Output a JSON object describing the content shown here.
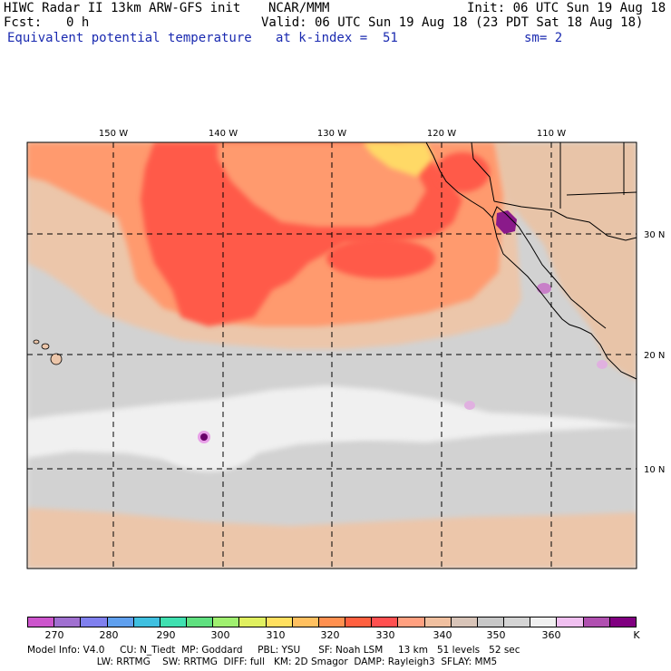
{
  "header": {
    "model_title": "HIWC Radar II 13km ARW-GFS init",
    "org": "NCAR/MMM",
    "init": "Init: 06 UTC Sun 19 Aug 18",
    "fcst_label": "Fcst:",
    "fcst_value": "0 h",
    "valid": "Valid: 06 UTC Sun 19 Aug 18 (23 PDT Sat 18 Aug 18)",
    "field_name": "Equivalent potential temperature",
    "level": "at k-index =  51",
    "smoothing": "sm= 2"
  },
  "map": {
    "lon_labels": [
      "150 W",
      "140 W",
      "130 W",
      "120 W",
      "110 W"
    ],
    "lat_labels": [
      "30 N",
      "20 N",
      "10 N"
    ]
  },
  "colorbar": {
    "colors": [
      "#cc55cc",
      "#a070d0",
      "#8080ee",
      "#60a0ee",
      "#40c0e0",
      "#40e0b0",
      "#60e080",
      "#a0f070",
      "#e0f060",
      "#ffe060",
      "#ffc060",
      "#ff9050",
      "#ff6040",
      "#ff5050",
      "#ffa080",
      "#f0c0a0",
      "#d8c4b8",
      "#c8c8c8",
      "#d4d4d4",
      "#f0f0f0",
      "#f0c0f0",
      "#b050b0",
      "#800080"
    ],
    "labels": [
      "270",
      "280",
      "290",
      "300",
      "310",
      "320",
      "330",
      "340",
      "350",
      "360"
    ],
    "unit": "K"
  },
  "footer": {
    "line1": "Model Info: V4.0     CU: N_Tiedt  MP: Goddard     PBL: YSU      SF: Noah LSM     13 km   51 levels   52 sec",
    "line2": "                       LW: RRTMG    SW: RRTMG  DIFF: full   KM: 2D Smagor  DAMP: Rayleigh3  SFLAY: MM5"
  }
}
